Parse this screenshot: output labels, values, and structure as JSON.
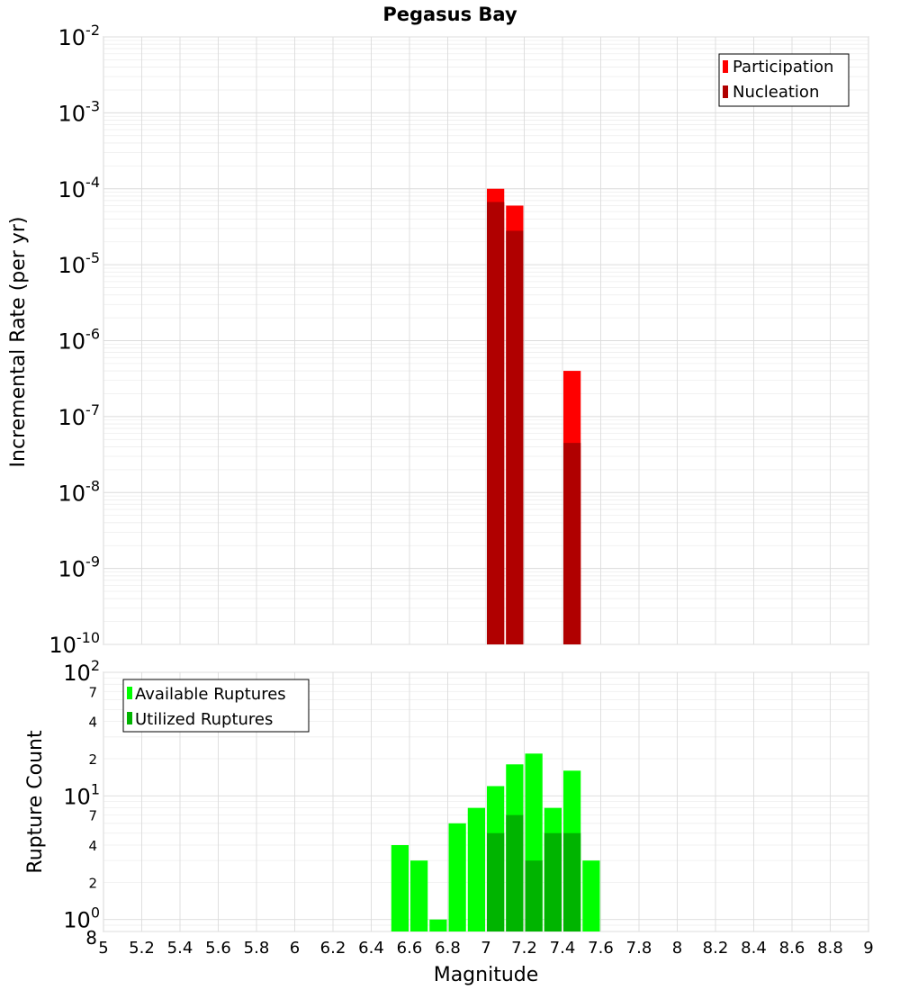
{
  "chart_data": [
    {
      "type": "bar",
      "title": "Pegasus Bay",
      "ylabel": "Incremental Rate (per yr)",
      "yscale": "log",
      "ylim": [
        1e-10,
        0.01
      ],
      "xlim": [
        5,
        9
      ],
      "grid": true,
      "legend_position": "top-right",
      "x": [
        7.05,
        7.15,
        7.45
      ],
      "bar_width": 0.1,
      "series": [
        {
          "name": "Participation",
          "color": "#ff0000",
          "values": [
            0.0001,
            6e-05,
            4e-07
          ]
        },
        {
          "name": "Nucleation",
          "color": "#b00000",
          "values": [
            6.7e-05,
            2.8e-05,
            4.5e-08
          ]
        }
      ]
    },
    {
      "type": "bar",
      "ylabel": "Rupture Count",
      "xlabel": "Magnitude",
      "yscale": "log",
      "ylim": [
        0.8,
        100
      ],
      "xlim": [
        5,
        9
      ],
      "grid": true,
      "legend_position": "top-left",
      "x": [
        6.55,
        6.65,
        6.75,
        6.85,
        6.95,
        7.05,
        7.15,
        7.25,
        7.35,
        7.45,
        7.55
      ],
      "bar_width": 0.1,
      "series": [
        {
          "name": "Available Ruptures",
          "color": "#00ff00",
          "values": [
            4,
            3,
            1,
            6,
            8,
            12,
            18,
            22,
            8,
            16,
            3
          ]
        },
        {
          "name": "Utilized Ruptures",
          "color": "#00b400",
          "values": [
            0,
            0,
            0,
            0,
            0,
            5,
            7,
            3,
            5,
            5,
            0
          ]
        }
      ]
    }
  ],
  "x_ticks": [
    "5",
    "5.2",
    "5.4",
    "5.6",
    "5.8",
    "6",
    "6.2",
    "6.4",
    "6.6",
    "6.8",
    "7",
    "7.2",
    "7.4",
    "7.6",
    "7.8",
    "8",
    "8.2",
    "8.4",
    "8.6",
    "8.8",
    "9"
  ],
  "top_y_ticks": [
    {
      "base": "10",
      "exp": "-2"
    },
    {
      "base": "10",
      "exp": "-3"
    },
    {
      "base": "10",
      "exp": "-4"
    },
    {
      "base": "10",
      "exp": "-5"
    },
    {
      "base": "10",
      "exp": "-6"
    },
    {
      "base": "10",
      "exp": "-7"
    },
    {
      "base": "10",
      "exp": "-8"
    },
    {
      "base": "10",
      "exp": "-9"
    },
    {
      "base": "10",
      "exp": "-10"
    }
  ],
  "bottom_y_ticks": [
    {
      "base": "10",
      "exp": "2"
    },
    {
      "base": "10",
      "exp": "1"
    },
    {
      "base": "10",
      "exp": "0"
    }
  ],
  "bottom_minor_labels": [
    "7",
    "4",
    "2",
    "7",
    "4",
    "2",
    "8"
  ]
}
